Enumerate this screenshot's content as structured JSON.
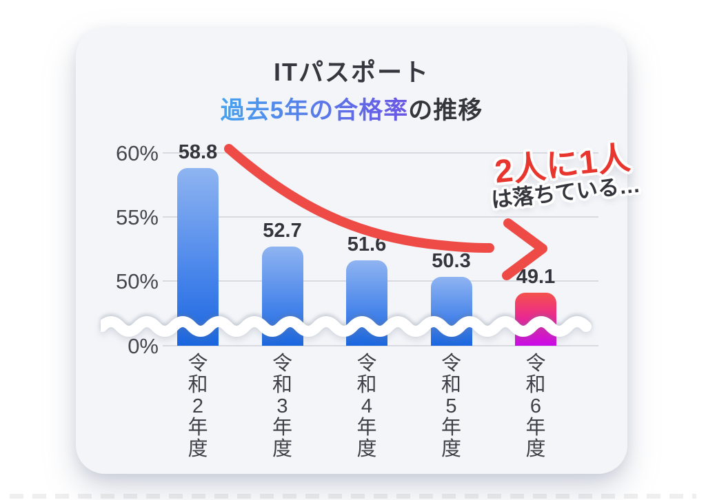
{
  "header": {
    "title": "ITパスポート",
    "subtitle_highlight": "過去5年の合格率",
    "subtitle_rest": "の推移"
  },
  "annotation": {
    "line1": "2人に1人",
    "line2": "は落ちている…"
  },
  "chart_data": {
    "type": "bar",
    "title": "ITパスポート 過去5年の合格率の推移",
    "categories": [
      "令和2年度",
      "令和3年度",
      "令和4年度",
      "令和5年度",
      "令和6年度"
    ],
    "values": [
      58.8,
      52.7,
      51.6,
      50.3,
      49.1
    ],
    "value_labels": [
      "58.8",
      "52.7",
      "51.6",
      "50.3",
      "49.1"
    ],
    "unit": "%",
    "yticks": [
      "60%",
      "55%",
      "50%",
      "0%"
    ],
    "ytick_values": [
      60,
      55,
      50,
      0
    ],
    "ylim_visible": [
      50,
      60
    ],
    "axis_break": true,
    "grid": true,
    "highlight_index": 4,
    "trend_arrow": "decreasing"
  },
  "colors": {
    "accent_red": "#EE4B47",
    "annotation_red": "#E8352E",
    "bar_blue_top": "#8FB4F1",
    "bar_blue_mid": "#4583EA",
    "bar_blue_bottom": "#1A66DF",
    "bar_pink_top": "#F4524B",
    "bar_pink_mid": "#E9219D",
    "bar_pink_bottom": "#C90BEA",
    "subtitle_gradient_start": "#47A2EE",
    "subtitle_gradient_end": "#6A55E4",
    "text_dark": "#35353C",
    "grid_line": "#D7DAE1",
    "card_bg": "#F3F5F9"
  }
}
